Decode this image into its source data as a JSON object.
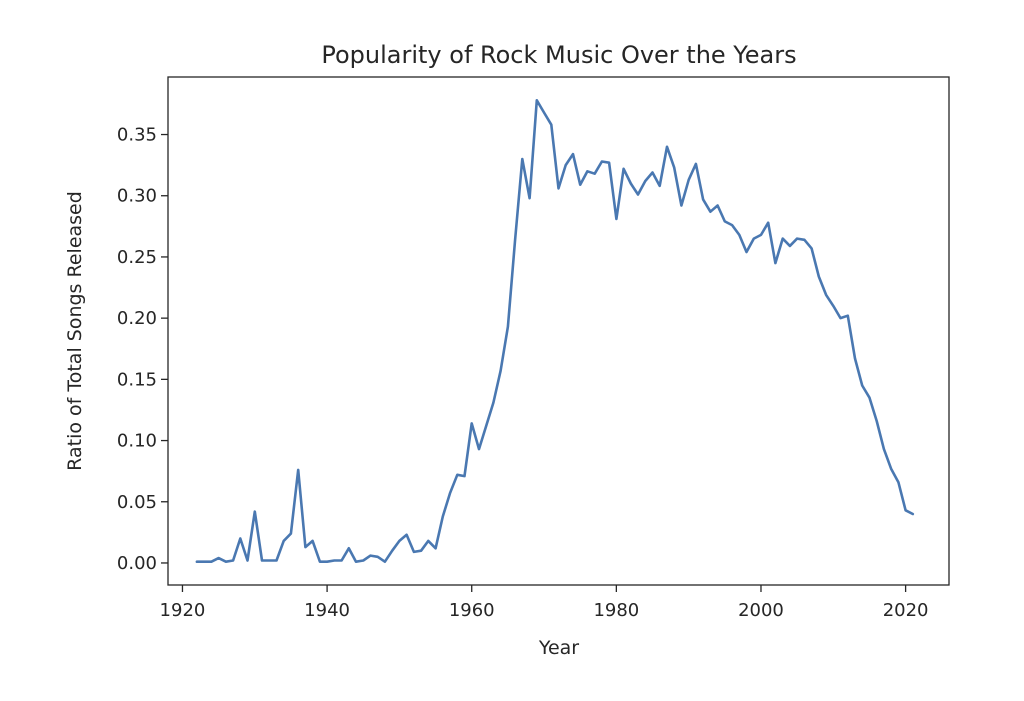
{
  "chart_data": {
    "type": "line",
    "title": "Popularity of Rock Music Over the Years",
    "xlabel": "Year",
    "ylabel": "Ratio of Total Songs Released",
    "xlim": [
      1918,
      2026
    ],
    "ylim": [
      -0.018,
      0.397
    ],
    "xticks": [
      1920,
      1940,
      1960,
      1980,
      2000,
      2020
    ],
    "xtick_labels": [
      "1920",
      "1940",
      "1960",
      "1980",
      "2000",
      "2020"
    ],
    "yticks": [
      0.0,
      0.05,
      0.1,
      0.15,
      0.2,
      0.25,
      0.3,
      0.35
    ],
    "ytick_labels": [
      "0.00",
      "0.05",
      "0.10",
      "0.15",
      "0.20",
      "0.25",
      "0.30",
      "0.35"
    ],
    "grid": false,
    "color": "#4a78b1",
    "series": [
      {
        "x": [
          1922,
          1923,
          1924,
          1925,
          1926,
          1927,
          1928,
          1929,
          1930,
          1931,
          1932,
          1933,
          1934,
          1935,
          1936,
          1937,
          1938,
          1939,
          1940,
          1941,
          1942,
          1943,
          1944,
          1945,
          1946,
          1947,
          1948,
          1949,
          1950,
          1951,
          1952,
          1953,
          1954,
          1955,
          1956,
          1957,
          1958,
          1959,
          1960,
          1961,
          1962,
          1963,
          1964,
          1965,
          1966,
          1967,
          1968,
          1969,
          1970,
          1971,
          1972,
          1973,
          1974,
          1975,
          1976,
          1977,
          1978,
          1979,
          1980,
          1981,
          1982,
          1983,
          1984,
          1985,
          1986,
          1987,
          1988,
          1989,
          1990,
          1991,
          1992,
          1993,
          1994,
          1995,
          1996,
          1997,
          1998,
          1999,
          2000,
          2001,
          2002,
          2003,
          2004,
          2005,
          2006,
          2007,
          2008,
          2009,
          2010,
          2011,
          2012,
          2013,
          2014,
          2015,
          2016,
          2017,
          2018,
          2019,
          2020,
          2021
        ],
        "y": [
          0.001,
          0.001,
          0.001,
          0.004,
          0.001,
          0.002,
          0.02,
          0.002,
          0.042,
          0.002,
          0.002,
          0.002,
          0.018,
          0.024,
          0.076,
          0.013,
          0.018,
          0.001,
          0.001,
          0.002,
          0.002,
          0.012,
          0.001,
          0.002,
          0.006,
          0.005,
          0.001,
          0.01,
          0.018,
          0.023,
          0.009,
          0.01,
          0.018,
          0.012,
          0.038,
          0.057,
          0.072,
          0.071,
          0.114,
          0.093,
          0.112,
          0.131,
          0.157,
          0.193,
          0.264,
          0.33,
          0.298,
          0.378,
          0.368,
          0.358,
          0.306,
          0.325,
          0.334,
          0.309,
          0.32,
          0.318,
          0.328,
          0.327,
          0.281,
          0.322,
          0.31,
          0.301,
          0.312,
          0.319,
          0.308,
          0.34,
          0.323,
          0.292,
          0.313,
          0.326,
          0.297,
          0.287,
          0.292,
          0.279,
          0.276,
          0.268,
          0.254,
          0.265,
          0.268,
          0.278,
          0.245,
          0.265,
          0.259,
          0.265,
          0.264,
          0.257,
          0.234,
          0.219,
          0.21,
          0.2,
          0.202,
          0.167,
          0.145,
          0.135,
          0.116,
          0.093,
          0.077,
          0.066,
          0.043,
          0.04
        ]
      }
    ]
  }
}
